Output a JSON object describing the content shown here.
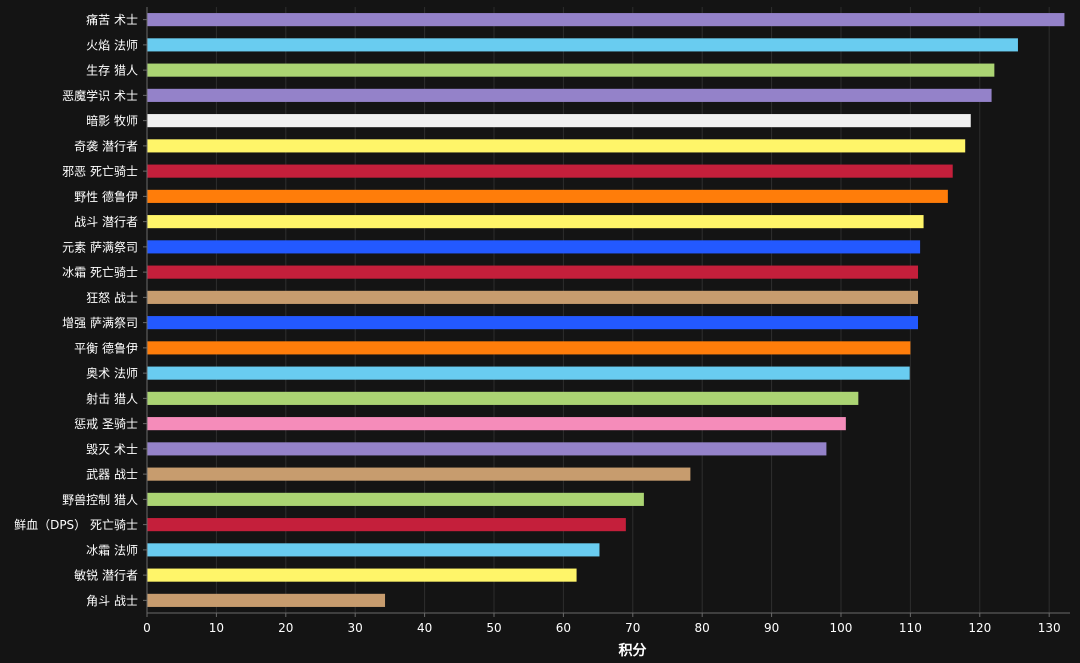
{
  "chart_data": {
    "type": "bar",
    "orientation": "horizontal",
    "xlabel": "积分",
    "xlim": [
      0,
      133
    ],
    "xticks": [
      0,
      10,
      20,
      30,
      40,
      50,
      60,
      70,
      80,
      90,
      100,
      110,
      120,
      130
    ],
    "grid": "vertical",
    "categories": [
      "痛苦 术士",
      "火焰 法师",
      "生存 猎人",
      "恶魔学识 术士",
      "暗影 牧师",
      "奇袭 潜行者",
      "邪恶 死亡骑士",
      "野性 德鲁伊",
      "战斗 潜行者",
      "元素 萨满祭司",
      "冰霜 死亡骑士",
      "狂怒 战士",
      "增强 萨满祭司",
      "平衡 德鲁伊",
      "奥术 法师",
      "射击 猎人",
      "惩戒 圣骑士",
      "毁灭 术士",
      "武器 战士",
      "野兽控制 猎人",
      "鲜血（DPS） 死亡骑士",
      "冰霜 法师",
      "敏锐 潜行者",
      "角斗 战士"
    ],
    "values": [
      132.2,
      125.5,
      122.1,
      121.7,
      118.7,
      117.9,
      116.1,
      115.4,
      111.9,
      111.4,
      111.1,
      111.1,
      111.1,
      110.0,
      109.9,
      102.5,
      100.7,
      97.9,
      78.3,
      71.6,
      69.0,
      65.2,
      61.9,
      34.3
    ],
    "colors": [
      "#9482C9",
      "#69CCF0",
      "#ABD473",
      "#9482C9",
      "#F0F0F0",
      "#FFF569",
      "#C41F3B",
      "#FF7D0A",
      "#FFF569",
      "#2359FF",
      "#C41F3B",
      "#C79C6E",
      "#2359FF",
      "#FF7D0A",
      "#69CCF0",
      "#ABD473",
      "#F58CBA",
      "#9482C9",
      "#C79C6E",
      "#ABD473",
      "#C41F3B",
      "#69CCF0",
      "#FFF569",
      "#C79C6E"
    ],
    "background": "#141414"
  }
}
